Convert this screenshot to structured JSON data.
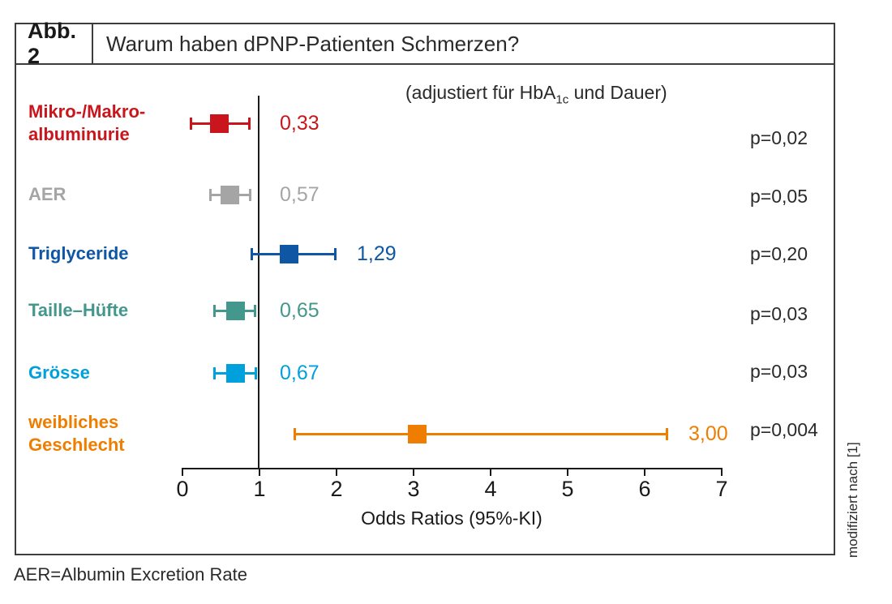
{
  "figure": {
    "label": "Abb. 2",
    "title": "Warum haben dPNP-Patienten Schmerzen?",
    "annotation": {
      "pre": "(adjustiert für HbA",
      "sub": "1c",
      "post": " und Dauer)"
    },
    "side_note": "modifiziert nach [1]",
    "footnote": "AER=Albumin Excretion Rate"
  },
  "chart_data": {
    "type": "scatter",
    "subtype": "forest-plot",
    "title": "Warum haben dPNP-Patienten Schmerzen?",
    "xlabel": "Odds Ratios (95%-KI)",
    "xlim": [
      0,
      7
    ],
    "xticks": [
      0,
      1,
      2,
      3,
      4,
      5,
      6,
      7
    ],
    "reference_line_x": 1,
    "grid": false,
    "rows": [
      {
        "label_lines": [
          "Mikro-/Makro-",
          "albuminurie"
        ],
        "or": 0.33,
        "or_label": "0,33",
        "ci": [
          0.1,
          0.88
        ],
        "marker_x": 0.48,
        "p_label": "p=0,02",
        "color": "#c9161c"
      },
      {
        "label_lines": [
          "AER"
        ],
        "or": 0.57,
        "or_label": "0,57",
        "ci": [
          0.36,
          0.89
        ],
        "marker_x": 0.62,
        "p_label": "p=0,05",
        "color": "#a5a5a5"
      },
      {
        "label_lines": [
          "Triglyceride"
        ],
        "or": 1.29,
        "or_label": "1,29",
        "ci": [
          0.89,
          2.0
        ],
        "marker_x": 1.39,
        "p_label": "p=0,20",
        "color": "#0f57a5"
      },
      {
        "label_lines": [
          "Taille–Hüfte"
        ],
        "or": 0.65,
        "or_label": "0,65",
        "ci": [
          0.41,
          0.96
        ],
        "marker_x": 0.69,
        "p_label": "p=0,03",
        "color": "#44978d"
      },
      {
        "label_lines": [
          "Grösse"
        ],
        "or": 0.67,
        "or_label": "0,67",
        "ci": [
          0.41,
          0.97
        ],
        "marker_x": 0.69,
        "p_label": "p=0,03",
        "color": "#00a0dd"
      },
      {
        "label_lines": [
          "weibliches",
          "Geschlecht"
        ],
        "or": 3.0,
        "or_label": "3,00",
        "ci": [
          1.45,
          6.3
        ],
        "marker_x": 3.05,
        "p_label": "p=0,004",
        "color": "#ee7d00"
      }
    ]
  }
}
